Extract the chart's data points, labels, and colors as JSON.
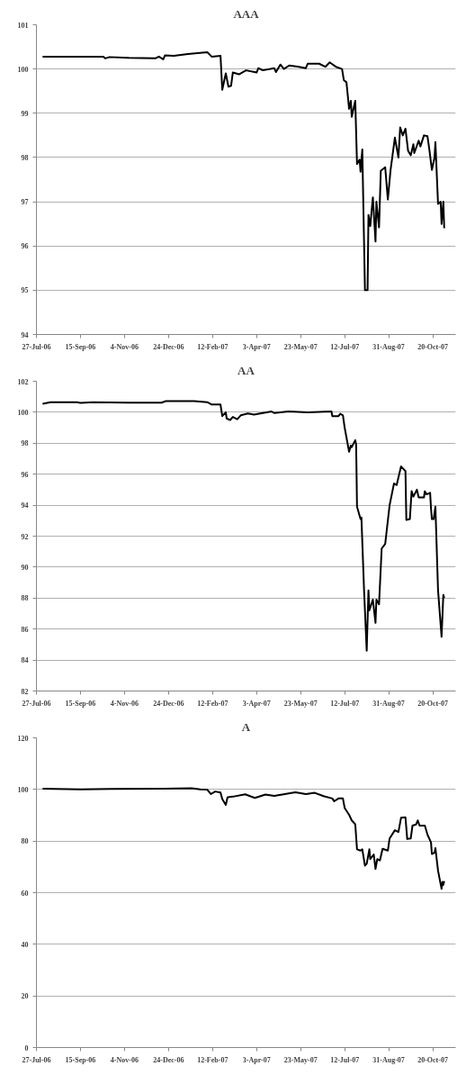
{
  "chart_data": [
    {
      "type": "line",
      "title": "AAA",
      "color": "#000000",
      "grid": "y",
      "xlim": [
        "2006-07-27",
        "2007-11-15"
      ],
      "xticks": [
        {
          "value": "2006-07-27",
          "label": "27-Jul-06"
        },
        {
          "value": "2006-09-15",
          "label": "15-Sep-06"
        },
        {
          "value": "2006-11-04",
          "label": "4-Nov-06"
        },
        {
          "value": "2006-12-24",
          "label": "24-Dec-06"
        },
        {
          "value": "2007-02-12",
          "label": "12-Feb-07"
        },
        {
          "value": "2007-04-03",
          "label": "3-Apr-07"
        },
        {
          "value": "2007-05-23",
          "label": "23-May-07"
        },
        {
          "value": "2007-07-12",
          "label": "12-Jul-07"
        },
        {
          "value": "2007-08-31",
          "label": "31-Aug-07"
        },
        {
          "value": "2007-10-20",
          "label": "20-Oct-07"
        }
      ],
      "ylim": [
        94,
        101
      ],
      "yticks": [
        94,
        95,
        96,
        97,
        98,
        99,
        100,
        101
      ],
      "x": [
        "2006-08-03",
        "2006-10-11",
        "2006-10-13",
        "2006-10-18",
        "2006-11-09",
        "2006-12-09",
        "2006-12-13",
        "2006-12-18",
        "2006-12-20",
        "2006-12-30",
        "2007-01-15",
        "2007-02-06",
        "2007-02-11",
        "2007-02-21",
        "2007-02-23",
        "2007-02-27",
        "2007-03-02",
        "2007-03-05",
        "2007-03-07",
        "2007-03-14",
        "2007-03-22",
        "2007-04-03",
        "2007-04-05",
        "2007-04-10",
        "2007-04-23",
        "2007-04-25",
        "2007-04-30",
        "2007-05-04",
        "2007-05-10",
        "2007-05-21",
        "2007-05-29",
        "2007-05-31",
        "2007-06-13",
        "2007-06-20",
        "2007-06-25",
        "2007-07-02",
        "2007-07-09",
        "2007-07-11",
        "2007-07-14",
        "2007-07-17",
        "2007-07-19",
        "2007-07-20",
        "2007-07-24",
        "2007-07-26",
        "2007-07-29",
        "2007-07-30",
        "2007-08-01",
        "2007-08-04",
        "2007-08-07",
        "2007-08-08",
        "2007-08-10",
        "2007-08-13",
        "2007-08-16",
        "2007-08-17",
        "2007-08-20",
        "2007-08-22",
        "2007-08-27",
        "2007-08-30",
        "2007-09-02",
        "2007-09-07",
        "2007-09-11",
        "2007-09-13",
        "2007-09-16",
        "2007-09-19",
        "2007-09-22",
        "2007-09-25",
        "2007-09-28",
        "2007-09-29",
        "2007-10-04",
        "2007-10-06",
        "2007-10-10",
        "2007-10-14",
        "2007-10-16",
        "2007-10-19",
        "2007-10-22",
        "2007-10-23",
        "2007-10-26",
        "2007-10-29",
        "2007-10-30",
        "2007-11-01",
        "2007-11-02"
      ],
      "values": [
        100.28,
        100.28,
        100.24,
        100.27,
        100.25,
        100.24,
        100.28,
        100.22,
        100.31,
        100.3,
        100.34,
        100.38,
        100.28,
        100.3,
        99.53,
        99.9,
        99.6,
        99.62,
        99.92,
        99.88,
        99.97,
        99.92,
        100.02,
        99.97,
        100.02,
        99.93,
        100.1,
        100.0,
        100.08,
        100.05,
        100.02,
        100.12,
        100.12,
        100.05,
        100.15,
        100.05,
        100.0,
        99.75,
        99.7,
        99.1,
        99.28,
        98.92,
        99.28,
        97.85,
        97.95,
        97.68,
        98.18,
        95.0,
        95.0,
        96.7,
        96.45,
        97.1,
        96.1,
        97.0,
        96.42,
        97.7,
        97.78,
        97.05,
        97.7,
        98.45,
        98.0,
        98.68,
        98.5,
        98.65,
        98.15,
        98.05,
        98.3,
        98.1,
        98.38,
        98.25,
        98.5,
        98.48,
        98.2,
        97.72,
        98.0,
        98.35,
        96.95,
        97.0,
        96.5,
        97.0,
        96.4
      ]
    },
    {
      "type": "line",
      "title": "AA",
      "color": "#000000",
      "grid": "y",
      "xlim": [
        "2006-07-27",
        "2007-11-15"
      ],
      "xticks": [
        {
          "value": "2006-07-27",
          "label": "27-Jul-06"
        },
        {
          "value": "2006-09-15",
          "label": "15-Sep-06"
        },
        {
          "value": "2006-11-04",
          "label": "4-Nov-06"
        },
        {
          "value": "2006-12-24",
          "label": "24-Dec-06"
        },
        {
          "value": "2007-02-12",
          "label": "12-Feb-07"
        },
        {
          "value": "2007-04-03",
          "label": "3-Apr-07"
        },
        {
          "value": "2007-05-23",
          "label": "23-May-07"
        },
        {
          "value": "2007-07-12",
          "label": "12-Jul-07"
        },
        {
          "value": "2007-08-31",
          "label": "31-Aug-07"
        },
        {
          "value": "2007-10-20",
          "label": "20-Oct-07"
        }
      ],
      "ylim": [
        82,
        102
      ],
      "yticks": [
        82,
        84,
        86,
        88,
        90,
        92,
        94,
        96,
        98,
        100,
        102
      ],
      "x": [
        "2006-08-03",
        "2006-08-12",
        "2006-09-11",
        "2006-09-15",
        "2006-09-29",
        "2006-11-09",
        "2006-12-16",
        "2006-12-21",
        "2007-01-22",
        "2007-02-06",
        "2007-02-11",
        "2007-02-21",
        "2007-02-23",
        "2007-02-27",
        "2007-02-28",
        "2007-03-04",
        "2007-03-07",
        "2007-03-12",
        "2007-03-16",
        "2007-03-24",
        "2007-03-31",
        "2007-04-20",
        "2007-04-23",
        "2007-05-09",
        "2007-05-31",
        "2007-06-27",
        "2007-06-28",
        "2007-07-05",
        "2007-07-07",
        "2007-07-10",
        "2007-07-12",
        "2007-07-17",
        "2007-07-19",
        "2007-07-20",
        "2007-07-24",
        "2007-07-25",
        "2007-07-26",
        "2007-07-30",
        "2007-07-31",
        "2007-08-03",
        "2007-08-06",
        "2007-08-08",
        "2007-08-09",
        "2007-08-13",
        "2007-08-16",
        "2007-08-17",
        "2007-08-20",
        "2007-08-23",
        "2007-08-27",
        "2007-08-28",
        "2007-09-01",
        "2007-09-06",
        "2007-09-09",
        "2007-09-14",
        "2007-09-19",
        "2007-09-20",
        "2007-09-24",
        "2007-09-26",
        "2007-09-28",
        "2007-10-02",
        "2007-10-04",
        "2007-10-10",
        "2007-10-11",
        "2007-10-13",
        "2007-10-17",
        "2007-10-18",
        "2007-10-19",
        "2007-10-21",
        "2007-10-23",
        "2007-10-26",
        "2007-10-28",
        "2007-10-30",
        "2007-11-01",
        "2007-11-02"
      ],
      "values": [
        100.55,
        100.65,
        100.65,
        100.6,
        100.65,
        100.62,
        100.62,
        100.72,
        100.72,
        100.65,
        100.5,
        100.5,
        99.75,
        100.0,
        99.6,
        99.5,
        99.7,
        99.55,
        99.8,
        99.92,
        99.85,
        100.05,
        99.95,
        100.05,
        100.0,
        100.05,
        99.75,
        99.75,
        99.9,
        99.8,
        99.0,
        97.45,
        97.85,
        97.75,
        98.2,
        97.9,
        93.9,
        93.1,
        93.2,
        88.5,
        84.6,
        88.5,
        87.2,
        87.9,
        86.4,
        87.9,
        87.6,
        91.2,
        91.5,
        92.0,
        94.0,
        95.4,
        95.3,
        96.5,
        96.2,
        93.05,
        93.1,
        94.9,
        94.55,
        95.0,
        94.5,
        94.5,
        94.9,
        94.7,
        94.8,
        93.8,
        93.1,
        93.1,
        93.9,
        88.5,
        87.0,
        85.5,
        88.2,
        88.0
      ]
    },
    {
      "type": "line",
      "title": "A",
      "color": "#000000",
      "grid": "y",
      "xlim": [
        "2006-07-27",
        "2007-11-15"
      ],
      "xticks": [
        {
          "value": "2006-07-27",
          "label": "27-Jul-06"
        },
        {
          "value": "2006-09-15",
          "label": "15-Sep-06"
        },
        {
          "value": "2006-11-04",
          "label": "4-Nov-06"
        },
        {
          "value": "2006-12-24",
          "label": "24-Dec-06"
        },
        {
          "value": "2007-02-12",
          "label": "12-Feb-07"
        },
        {
          "value": "2007-04-03",
          "label": "3-Apr-07"
        },
        {
          "value": "2007-05-23",
          "label": "23-May-07"
        },
        {
          "value": "2007-07-12",
          "label": "12-Jul-07"
        },
        {
          "value": "2007-08-31",
          "label": "31-Aug-07"
        },
        {
          "value": "2007-10-20",
          "label": "20-Oct-07"
        }
      ],
      "ylim": [
        0,
        120
      ],
      "yticks": [
        0,
        20,
        40,
        60,
        80,
        100,
        120
      ],
      "x": [
        "2006-08-03",
        "2006-09-15",
        "2006-10-20",
        "2006-12-19",
        "2007-01-19",
        "2007-01-29",
        "2007-02-06",
        "2007-02-10",
        "2007-02-15",
        "2007-02-21",
        "2007-02-23",
        "2007-02-27",
        "2007-03-01",
        "2007-03-07",
        "2007-03-21",
        "2007-04-01",
        "2007-04-13",
        "2007-04-23",
        "2007-05-17",
        "2007-05-29",
        "2007-06-08",
        "2007-06-18",
        "2007-06-28",
        "2007-06-30",
        "2007-07-05",
        "2007-07-10",
        "2007-07-12",
        "2007-07-17",
        "2007-07-20",
        "2007-07-24",
        "2007-07-26",
        "2007-07-30",
        "2007-08-01",
        "2007-08-04",
        "2007-08-06",
        "2007-08-09",
        "2007-08-10",
        "2007-08-14",
        "2007-08-16",
        "2007-08-18",
        "2007-08-21",
        "2007-08-24",
        "2007-08-30",
        "2007-09-01",
        "2007-09-07",
        "2007-09-11",
        "2007-09-14",
        "2007-09-19",
        "2007-09-21",
        "2007-09-25",
        "2007-09-27",
        "2007-10-01",
        "2007-10-03",
        "2007-10-05",
        "2007-10-11",
        "2007-10-14",
        "2007-10-18",
        "2007-10-19",
        "2007-10-22",
        "2007-10-23",
        "2007-10-26",
        "2007-10-28",
        "2007-10-30",
        "2007-10-31",
        "2007-11-01",
        "2007-11-02"
      ],
      "values": [
        100.3,
        100.0,
        100.2,
        100.3,
        100.5,
        100.0,
        99.9,
        98.2,
        99.2,
        98.8,
        96.3,
        94.0,
        97.0,
        97.2,
        98.1,
        96.7,
        98.0,
        97.5,
        98.9,
        98.2,
        98.7,
        97.4,
        96.5,
        95.4,
        96.5,
        96.5,
        92.8,
        90.2,
        88.0,
        86.5,
        76.8,
        76.3,
        76.8,
        70.5,
        71.2,
        76.8,
        73.0,
        74.8,
        69.2,
        73.0,
        72.5,
        77.0,
        76.3,
        81.0,
        84.2,
        83.5,
        89.0,
        89.2,
        80.8,
        81.0,
        86.0,
        86.4,
        88.0,
        86.0,
        86.0,
        82.5,
        79.5,
        75.0,
        75.5,
        77.3,
        68.5,
        65.0,
        61.5,
        64.2,
        63.0,
        64.5
      ]
    }
  ]
}
